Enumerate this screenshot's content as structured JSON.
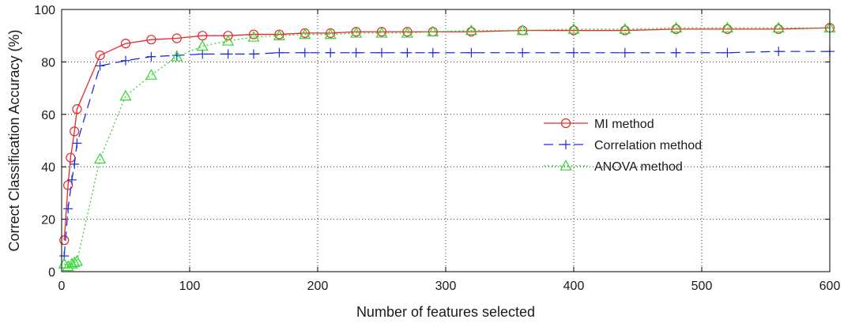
{
  "chart_data": {
    "type": "line",
    "xlabel": "Number of features selected",
    "ylabel": "Correct Classification Accuracy (%)",
    "xlim": [
      0,
      600
    ],
    "ylim": [
      0,
      100
    ],
    "xticks": [
      0,
      100,
      200,
      300,
      400,
      500,
      600
    ],
    "yticks": [
      0,
      20,
      40,
      60,
      80,
      100
    ],
    "grid": true,
    "legend_position": "center-right",
    "series": [
      {
        "name": "MI method",
        "color": "#e8262a",
        "line_style": "solid",
        "marker": "circle",
        "x": [
          2,
          5,
          7,
          10,
          12,
          30,
          50,
          70,
          90,
          110,
          130,
          150,
          170,
          190,
          210,
          230,
          250,
          270,
          290,
          320,
          360,
          400,
          440,
          480,
          520,
          560,
          600
        ],
        "y": [
          12,
          33,
          43.5,
          53.5,
          62,
          82.5,
          87,
          88.5,
          89,
          90,
          90,
          90.5,
          90.5,
          91,
          91,
          91.5,
          91.5,
          91.5,
          91.5,
          91.5,
          92,
          92,
          92,
          92.5,
          92.5,
          92.5,
          93
        ]
      },
      {
        "name": "Correlation method",
        "color": "#1f2fd6",
        "line_style": "dashed",
        "marker": "plus",
        "x": [
          2,
          5,
          8,
          10,
          12,
          30,
          50,
          70,
          90,
          110,
          130,
          150,
          170,
          190,
          210,
          230,
          250,
          270,
          290,
          320,
          360,
          400,
          440,
          480,
          520,
          560,
          600
        ],
        "y": [
          6,
          24,
          35,
          41,
          49,
          78.5,
          80.5,
          82,
          82.5,
          83,
          83,
          83,
          83.5,
          83.5,
          83.5,
          83.5,
          83.5,
          83.5,
          83.5,
          83.5,
          83.5,
          83.5,
          83.5,
          83.5,
          83.5,
          84,
          84
        ]
      },
      {
        "name": "ANOVA method",
        "color": "#2fd62f",
        "line_style": "dotted",
        "marker": "triangle",
        "x": [
          2,
          5,
          8,
          10,
          12,
          30,
          50,
          70,
          90,
          110,
          130,
          150,
          170,
          190,
          210,
          230,
          250,
          270,
          290,
          320,
          360,
          400,
          440,
          480,
          520,
          560,
          600
        ],
        "y": [
          3,
          2,
          3,
          3.5,
          4,
          43,
          67,
          75,
          82,
          86,
          88,
          89.5,
          90,
          90.5,
          90.5,
          91,
          91,
          91,
          91.5,
          92,
          92,
          92.5,
          92.5,
          93,
          93,
          93,
          93
        ]
      }
    ]
  }
}
